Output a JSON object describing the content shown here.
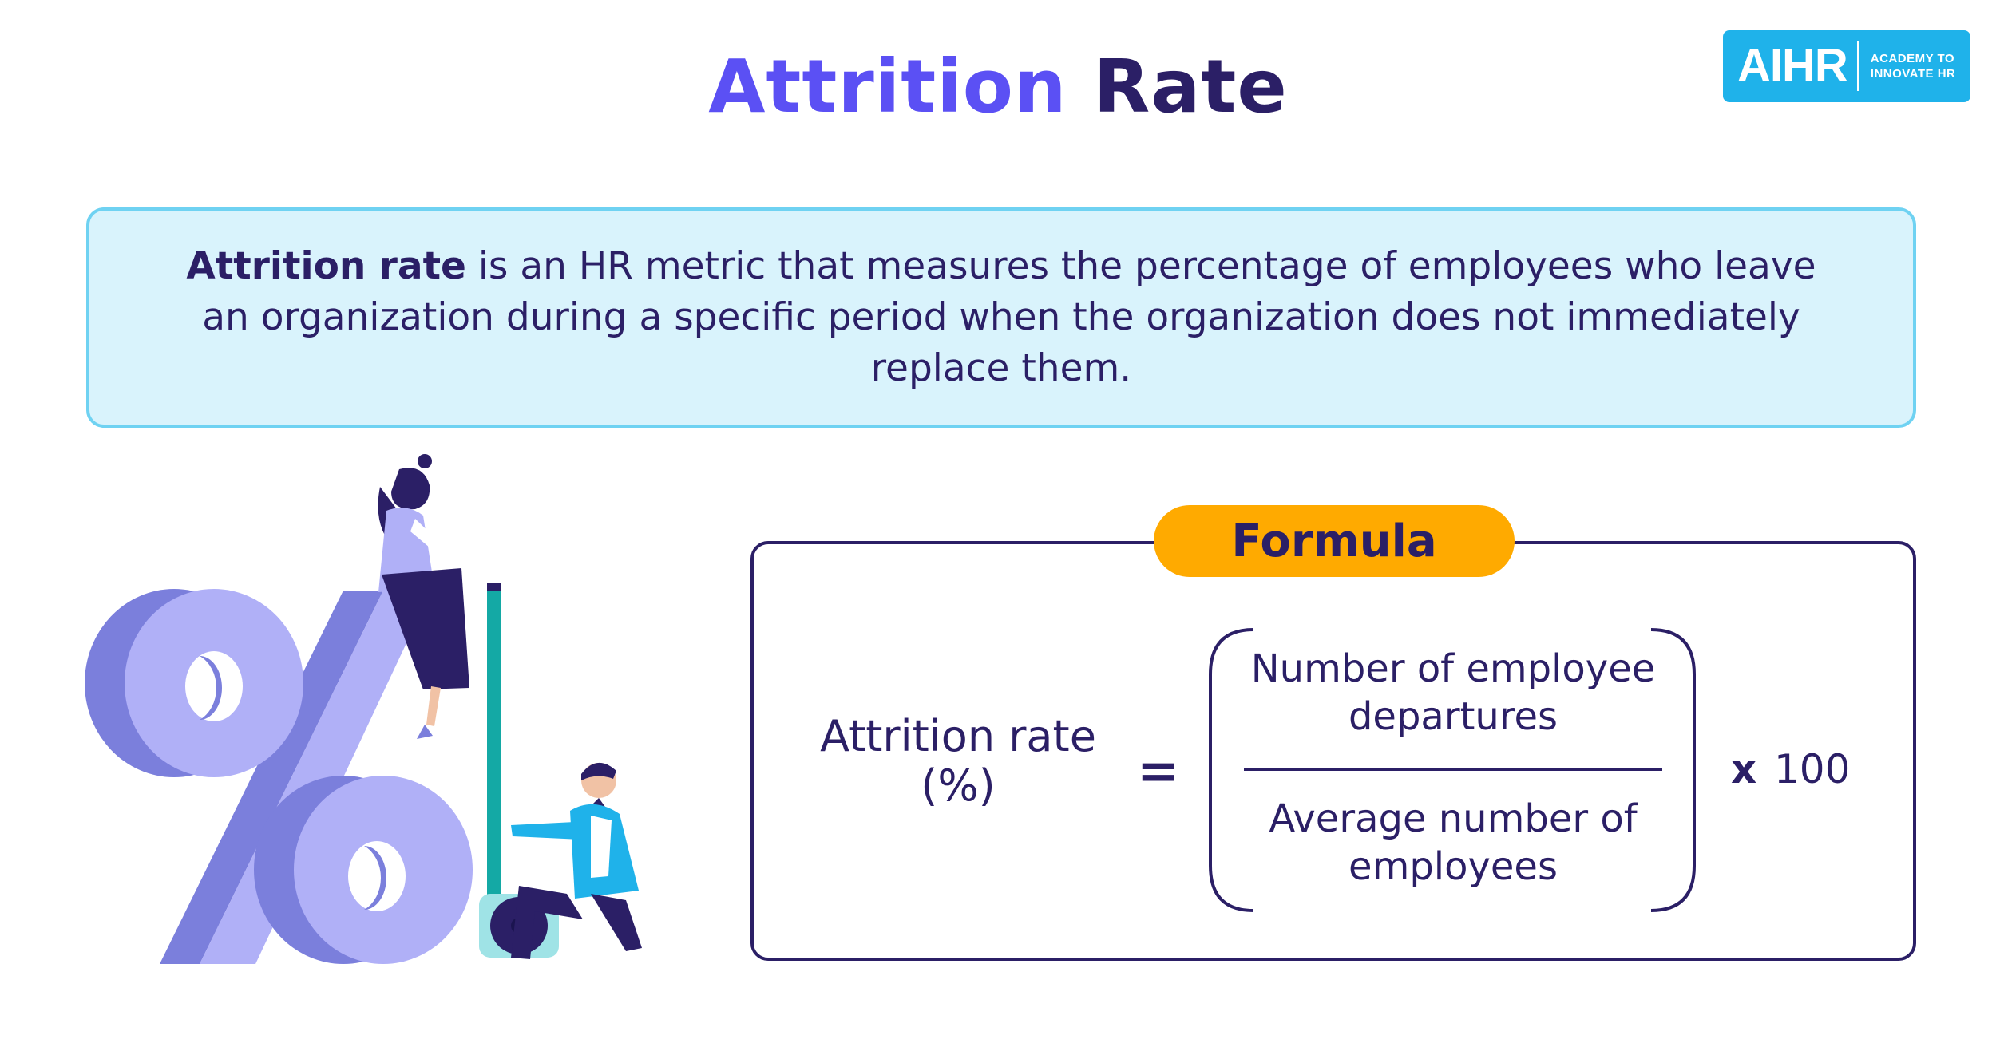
{
  "title": {
    "part1": "Attrition",
    "part2": "Rate"
  },
  "logo": {
    "mark": "AIHR",
    "sub_line1": "ACADEMY TO",
    "sub_line2": "INNOVATE HR"
  },
  "definition": {
    "term": "Attrition rate",
    "text": " is an HR metric that measures the percentage of employees who leave an organization during a specific period when the organization does not immediately replace them."
  },
  "illustration": {
    "icon": "percent-sign-with-measuring-people"
  },
  "formula": {
    "label": "Formula",
    "lhs_line1": "Attrition rate",
    "lhs_line2": "(%)",
    "equals": "=",
    "numerator_line1": "Number of employee",
    "numerator_line2": "departures",
    "denominator_line1": "Average number of",
    "denominator_line2": "employees",
    "multiply": "x",
    "multiplier": "100"
  },
  "colors": {
    "navy": "#2b1f66",
    "accent_purple": "#5b50f4",
    "cyan": "#1fb2ea",
    "light_blue_bg": "#d9f3fc",
    "orange": "#ffaa00",
    "lavender": "#b0b0f7"
  }
}
